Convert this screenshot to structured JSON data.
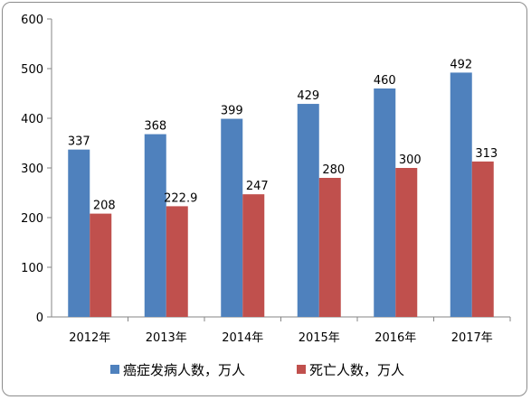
{
  "chart_data": {
    "type": "bar",
    "title": "",
    "xlabel": "",
    "ylabel": "",
    "ylim": [
      0,
      600
    ],
    "yticks": [
      0,
      100,
      200,
      300,
      400,
      500,
      600
    ],
    "categories": [
      "2012年",
      "2013年",
      "2014年",
      "2015年",
      "2016年",
      "2017年"
    ],
    "series": [
      {
        "name": "癌症发病人数，万人",
        "color": "#4F81BD",
        "values": [
          337,
          368,
          399,
          429,
          460,
          492
        ],
        "labels": [
          "337",
          "368",
          "399",
          "429",
          "460",
          "492"
        ]
      },
      {
        "name": "死亡人数，万人",
        "color": "#C0504D",
        "values": [
          208,
          222.9,
          247,
          280,
          300,
          313
        ],
        "labels": [
          "208",
          "222.9",
          "247",
          "280",
          "300",
          "313"
        ]
      }
    ],
    "grid": false,
    "legend": "bottom"
  }
}
